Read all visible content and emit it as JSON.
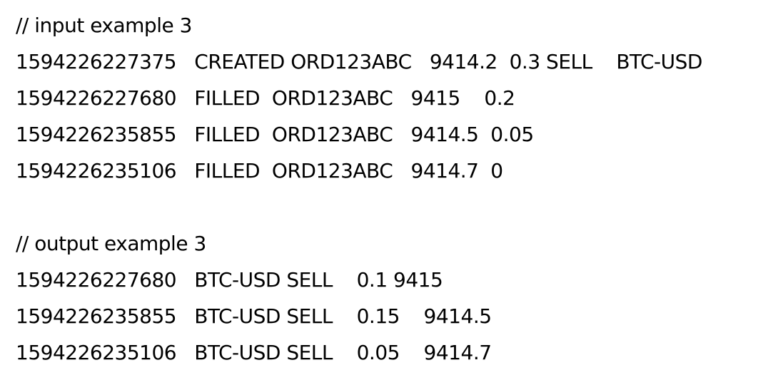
{
  "input_section": {
    "comment": "// input example 3",
    "lines": [
      "1594226227375   CREATED ORD123ABC   9414.2  0.3 SELL    BTC-USD",
      "1594226227680   FILLED  ORD123ABC   9415    0.2",
      "1594226235855   FILLED  ORD123ABC   9414.5  0.05",
      "1594226235106   FILLED  ORD123ABC   9414.7  0"
    ]
  },
  "output_section": {
    "comment": "// output example 3",
    "lines": [
      "1594226227680   BTC-USD SELL    0.1 9415",
      "1594226235855   BTC-USD SELL    0.15    9414.5",
      "1594226235106   BTC-USD SELL    0.05    9414.7"
    ]
  }
}
